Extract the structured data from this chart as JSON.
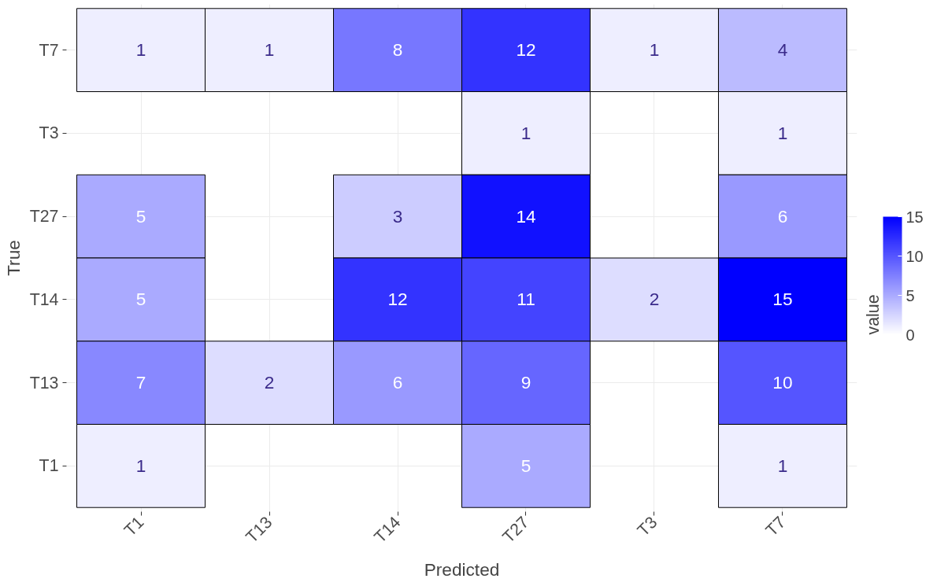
{
  "chart_data": {
    "type": "heatmap",
    "xlabel": "Predicted",
    "ylabel": "True",
    "clabel": "value",
    "categories": [
      "T1",
      "T13",
      "T14",
      "T27",
      "T3",
      "T7"
    ],
    "y_categories": [
      "T7",
      "T3",
      "T27",
      "T14",
      "T13",
      "T1"
    ],
    "cells": [
      [
        1,
        1,
        8,
        12,
        1,
        4
      ],
      [
        null,
        null,
        null,
        1,
        null,
        1
      ],
      [
        5,
        null,
        3,
        14,
        null,
        6
      ],
      [
        5,
        null,
        12,
        11,
        2,
        15
      ],
      [
        7,
        2,
        6,
        9,
        null,
        10
      ],
      [
        1,
        null,
        null,
        5,
        null,
        1
      ]
    ],
    "clim": [
      0,
      15
    ],
    "cticks": [
      0,
      5,
      10,
      15
    ],
    "data_labels": true,
    "grid": true
  }
}
